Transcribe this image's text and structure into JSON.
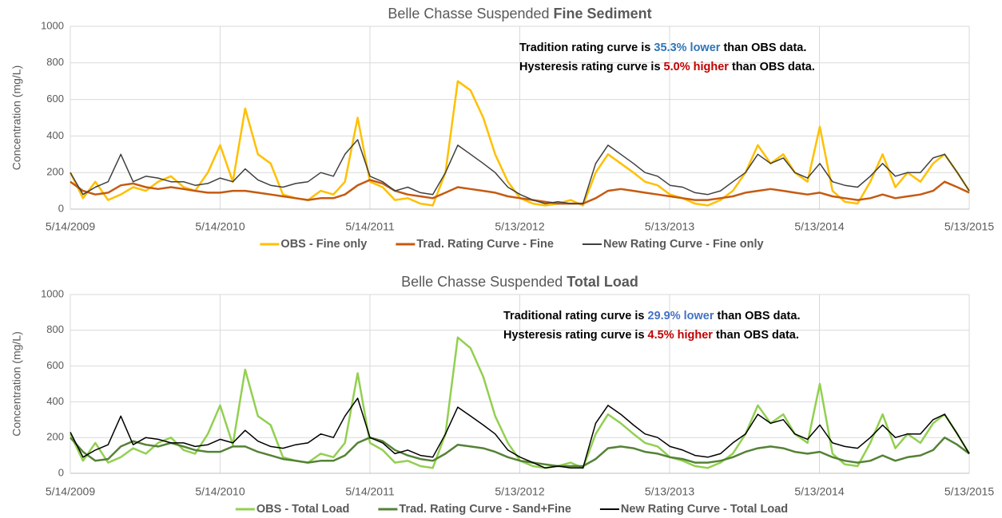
{
  "chart_data": [
    {
      "type": "line",
      "title": {
        "text": "Belle Chasse Suspended ",
        "bold": "Fine Sediment"
      },
      "ylabel": "Concentration (mg/L)",
      "annotations": [
        [
          {
            "text": "Tradition rating curve is "
          },
          {
            "text": "35.3% lower",
            "color": "#2e75b6"
          },
          {
            "text": " than OBS data."
          }
        ],
        [
          {
            "text": "Hysteresis rating curve is "
          },
          {
            "text": "5.0% higher",
            "color": "#c00000"
          },
          {
            "text": " than OBS data."
          }
        ]
      ],
      "x": [
        "2009-05-14",
        "2009-06-14",
        "2009-07-14",
        "2009-08-14",
        "2009-09-14",
        "2009-10-14",
        "2009-11-14",
        "2009-12-14",
        "2010-01-14",
        "2010-02-14",
        "2010-03-14",
        "2010-04-14",
        "2010-05-14",
        "2010-06-14",
        "2010-07-14",
        "2010-08-14",
        "2010-09-14",
        "2010-10-14",
        "2010-11-14",
        "2010-12-14",
        "2011-01-14",
        "2011-02-14",
        "2011-03-14",
        "2011-04-14",
        "2011-05-14",
        "2011-06-14",
        "2011-07-14",
        "2011-08-14",
        "2011-09-14",
        "2011-10-14",
        "2011-11-14",
        "2011-12-14",
        "2012-01-14",
        "2012-02-14",
        "2012-03-14",
        "2012-04-14",
        "2012-05-14",
        "2012-06-14",
        "2012-07-14",
        "2012-08-14",
        "2012-09-14",
        "2012-10-14",
        "2012-11-14",
        "2012-12-14",
        "2013-01-14",
        "2013-02-14",
        "2013-03-14",
        "2013-04-14",
        "2013-05-14",
        "2013-06-14",
        "2013-07-14",
        "2013-08-14",
        "2013-09-14",
        "2013-10-14",
        "2013-11-14",
        "2013-12-14",
        "2014-01-14",
        "2014-02-14",
        "2014-03-14",
        "2014-04-14",
        "2014-05-14",
        "2014-06-14",
        "2014-07-14",
        "2014-08-14",
        "2014-09-14",
        "2014-10-14",
        "2014-11-14",
        "2014-12-14",
        "2015-01-14",
        "2015-02-14",
        "2015-03-14",
        "2015-04-14",
        "2015-05-13"
      ],
      "series": [
        {
          "name": "OBS - Fine only",
          "color": "#ffc000",
          "width": 2.5,
          "values": [
            200,
            60,
            150,
            50,
            80,
            120,
            100,
            150,
            180,
            120,
            100,
            200,
            350,
            150,
            550,
            300,
            250,
            80,
            60,
            50,
            100,
            80,
            150,
            500,
            150,
            120,
            50,
            60,
            30,
            20,
            200,
            700,
            650,
            500,
            300,
            150,
            60,
            30,
            20,
            30,
            50,
            20,
            200,
            300,
            250,
            200,
            150,
            130,
            80,
            60,
            30,
            20,
            50,
            100,
            200,
            350,
            250,
            300,
            200,
            150,
            450,
            100,
            40,
            30,
            150,
            300,
            120,
            200,
            150,
            250,
            300,
            200,
            100
          ]
        },
        {
          "name": "Trad. Rating Curve - Fine",
          "color": "#c55a11",
          "width": 2.5,
          "values": [
            150,
            100,
            80,
            90,
            130,
            140,
            120,
            110,
            120,
            110,
            100,
            90,
            90,
            100,
            100,
            90,
            80,
            70,
            60,
            50,
            60,
            60,
            80,
            130,
            160,
            140,
            100,
            80,
            70,
            60,
            90,
            120,
            110,
            100,
            90,
            70,
            60,
            50,
            40,
            30,
            30,
            30,
            60,
            100,
            110,
            100,
            90,
            80,
            70,
            60,
            50,
            50,
            60,
            70,
            90,
            100,
            110,
            100,
            90,
            80,
            90,
            70,
            60,
            50,
            60,
            80,
            60,
            70,
            80,
            100,
            150,
            120,
            90
          ]
        },
        {
          "name": "New Rating Curve - Fine only",
          "color": "#404040",
          "width": 1.5,
          "values": [
            200,
            80,
            120,
            150,
            300,
            150,
            180,
            170,
            150,
            150,
            130,
            140,
            170,
            150,
            220,
            160,
            130,
            120,
            140,
            150,
            200,
            180,
            300,
            380,
            180,
            150,
            100,
            120,
            90,
            80,
            200,
            350,
            300,
            250,
            200,
            120,
            80,
            50,
            30,
            40,
            30,
            30,
            250,
            350,
            300,
            250,
            200,
            180,
            130,
            120,
            90,
            80,
            100,
            150,
            200,
            300,
            250,
            280,
            200,
            170,
            250,
            150,
            130,
            120,
            180,
            250,
            180,
            200,
            200,
            280,
            300,
            200,
            100
          ]
        }
      ],
      "xlim": [
        "2009-05-14",
        "2015-05-13"
      ],
      "xticks": [
        {
          "value": "2009-05-14",
          "label": "5/14/2009"
        },
        {
          "value": "2010-05-14",
          "label": "5/14/2010"
        },
        {
          "value": "2011-05-14",
          "label": "5/14/2011"
        },
        {
          "value": "2012-05-13",
          "label": "5/13/2012"
        },
        {
          "value": "2013-05-13",
          "label": "5/13/2013"
        },
        {
          "value": "2014-05-13",
          "label": "5/13/2014"
        },
        {
          "value": "2015-05-13",
          "label": "5/13/2015"
        }
      ],
      "ylim": [
        0,
        1000
      ],
      "yticks": [
        0,
        200,
        400,
        600,
        800,
        1000
      ],
      "grid": true,
      "legend": "bottom"
    },
    {
      "type": "line",
      "title": {
        "text": "Belle Chasse Suspended ",
        "bold": "Total Load"
      },
      "ylabel": "Concentration (mg/L)",
      "annotations": [
        [
          {
            "text": "Traditional rating curve is "
          },
          {
            "text": "29.9% lower",
            "color": "#4472c4"
          },
          {
            "text": " than OBS data."
          }
        ],
        [
          {
            "text": "Hysteresis rating curve is "
          },
          {
            "text": "4.5% higher",
            "color": "#c00000"
          },
          {
            "text": " than OBS data."
          }
        ]
      ],
      "x": [
        "2009-05-14",
        "2009-06-14",
        "2009-07-14",
        "2009-08-14",
        "2009-09-14",
        "2009-10-14",
        "2009-11-14",
        "2009-12-14",
        "2010-01-14",
        "2010-02-14",
        "2010-03-14",
        "2010-04-14",
        "2010-05-14",
        "2010-06-14",
        "2010-07-14",
        "2010-08-14",
        "2010-09-14",
        "2010-10-14",
        "2010-11-14",
        "2010-12-14",
        "2011-01-14",
        "2011-02-14",
        "2011-03-14",
        "2011-04-14",
        "2011-05-14",
        "2011-06-14",
        "2011-07-14",
        "2011-08-14",
        "2011-09-14",
        "2011-10-14",
        "2011-11-14",
        "2011-12-14",
        "2012-01-14",
        "2012-02-14",
        "2012-03-14",
        "2012-04-14",
        "2012-05-14",
        "2012-06-14",
        "2012-07-14",
        "2012-08-14",
        "2012-09-14",
        "2012-10-14",
        "2012-11-14",
        "2012-12-14",
        "2013-01-14",
        "2013-02-14",
        "2013-03-14",
        "2013-04-14",
        "2013-05-14",
        "2013-06-14",
        "2013-07-14",
        "2013-08-14",
        "2013-09-14",
        "2013-10-14",
        "2013-11-14",
        "2013-12-14",
        "2014-01-14",
        "2014-02-14",
        "2014-03-14",
        "2014-04-14",
        "2014-05-14",
        "2014-06-14",
        "2014-07-14",
        "2014-08-14",
        "2014-09-14",
        "2014-10-14",
        "2014-11-14",
        "2014-12-14",
        "2015-01-14",
        "2015-02-14",
        "2015-03-14",
        "2015-04-14",
        "2015-05-13"
      ],
      "series": [
        {
          "name": "OBS - Total Load",
          "color": "#92d050",
          "width": 2.5,
          "values": [
            220,
            70,
            170,
            60,
            90,
            140,
            110,
            170,
            200,
            130,
            110,
            220,
            380,
            160,
            580,
            320,
            270,
            90,
            70,
            60,
            110,
            90,
            170,
            560,
            170,
            130,
            60,
            70,
            40,
            30,
            220,
            760,
            700,
            540,
            320,
            170,
            70,
            40,
            30,
            40,
            60,
            30,
            220,
            330,
            280,
            220,
            170,
            150,
            90,
            70,
            40,
            30,
            60,
            110,
            220,
            380,
            280,
            330,
            220,
            170,
            500,
            110,
            50,
            40,
            170,
            330,
            140,
            220,
            170,
            280,
            330,
            220,
            110
          ]
        },
        {
          "name": "Trad. Rating Curve - Sand+Fine",
          "color": "#548235",
          "width": 2.5,
          "values": [
            200,
            120,
            70,
            80,
            150,
            180,
            160,
            150,
            170,
            150,
            130,
            120,
            120,
            150,
            150,
            120,
            100,
            80,
            70,
            60,
            70,
            70,
            100,
            170,
            200,
            180,
            130,
            100,
            80,
            70,
            110,
            160,
            150,
            140,
            120,
            90,
            70,
            60,
            50,
            40,
            40,
            40,
            80,
            140,
            150,
            140,
            120,
            110,
            90,
            80,
            60,
            60,
            70,
            90,
            120,
            140,
            150,
            140,
            120,
            110,
            120,
            90,
            70,
            60,
            70,
            100,
            70,
            90,
            100,
            130,
            200,
            160,
            110
          ]
        },
        {
          "name": "New Rating Curve - Total Load",
          "color": "#000000",
          "width": 1.5,
          "values": [
            230,
            90,
            130,
            160,
            320,
            160,
            200,
            190,
            170,
            170,
            150,
            160,
            190,
            170,
            240,
            180,
            150,
            140,
            160,
            170,
            220,
            200,
            320,
            420,
            200,
            170,
            110,
            130,
            100,
            90,
            220,
            370,
            320,
            270,
            220,
            130,
            90,
            60,
            30,
            40,
            30,
            30,
            280,
            380,
            330,
            270,
            220,
            200,
            150,
            130,
            100,
            90,
            110,
            170,
            220,
            330,
            280,
            300,
            220,
            190,
            270,
            170,
            150,
            140,
            200,
            270,
            200,
            220,
            220,
            300,
            330,
            220,
            110
          ]
        }
      ],
      "xlim": [
        "2009-05-14",
        "2015-05-13"
      ],
      "xticks": [
        {
          "value": "2009-05-14",
          "label": "5/14/2009"
        },
        {
          "value": "2010-05-14",
          "label": "5/14/2010"
        },
        {
          "value": "2011-05-14",
          "label": "5/14/2011"
        },
        {
          "value": "2012-05-13",
          "label": "5/13/2012"
        },
        {
          "value": "2013-05-13",
          "label": "5/13/2013"
        },
        {
          "value": "2014-05-13",
          "label": "5/13/2014"
        },
        {
          "value": "2015-05-13",
          "label": "5/13/2015"
        }
      ],
      "ylim": [
        0,
        1000
      ],
      "yticks": [
        0,
        200,
        400,
        600,
        800,
        1000
      ],
      "grid": true,
      "legend": "bottom"
    }
  ]
}
